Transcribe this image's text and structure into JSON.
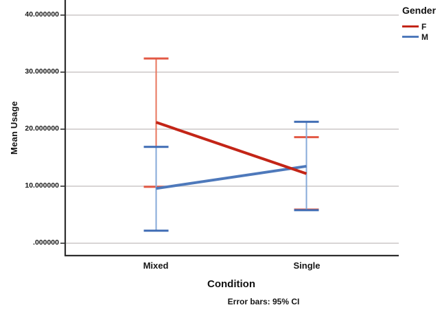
{
  "figure": {
    "y_axis": {
      "title": "Mean Usage",
      "ticks": [
        "40.000000",
        "30.000000",
        "20.000000",
        "10.000000",
        ".000000"
      ],
      "tick_values": [
        40,
        30,
        20,
        10,
        0
      ]
    },
    "x_axis": {
      "title": "Condition",
      "categories": [
        "Mixed",
        "Single"
      ]
    },
    "footnote": "Error bars: 95% CI",
    "legend": {
      "title": "Gender",
      "entries": [
        {
          "label": "F",
          "color": "#c32517"
        },
        {
          "label": "M",
          "color": "#4e79bb"
        }
      ]
    }
  },
  "chart_data": {
    "type": "line",
    "title": "",
    "categories": [
      "Mixed",
      "Single"
    ],
    "series": [
      {
        "name": "F",
        "color": "#c32517",
        "error_line_color": "#e8755c",
        "error_cap_color": "#e25844",
        "means": [
          21.2,
          12.2
        ],
        "ci_low": [
          9.9,
          5.9
        ],
        "ci_high": [
          32.4,
          18.6
        ]
      },
      {
        "name": "M",
        "color": "#4e79bb",
        "error_line_color": "#85a9d8",
        "error_cap_color": "#3f6cb4",
        "means": [
          9.6,
          13.5
        ],
        "ci_low": [
          2.2,
          5.8
        ],
        "ci_high": [
          16.9,
          21.3
        ]
      }
    ],
    "xlabel": "Condition",
    "ylabel": "Mean Usage",
    "ylim": [
      0,
      42.6
    ],
    "grid": true,
    "legend_position": "top-right",
    "error_bars": "95% CI",
    "footnote": "Error bars: 95% CI"
  }
}
